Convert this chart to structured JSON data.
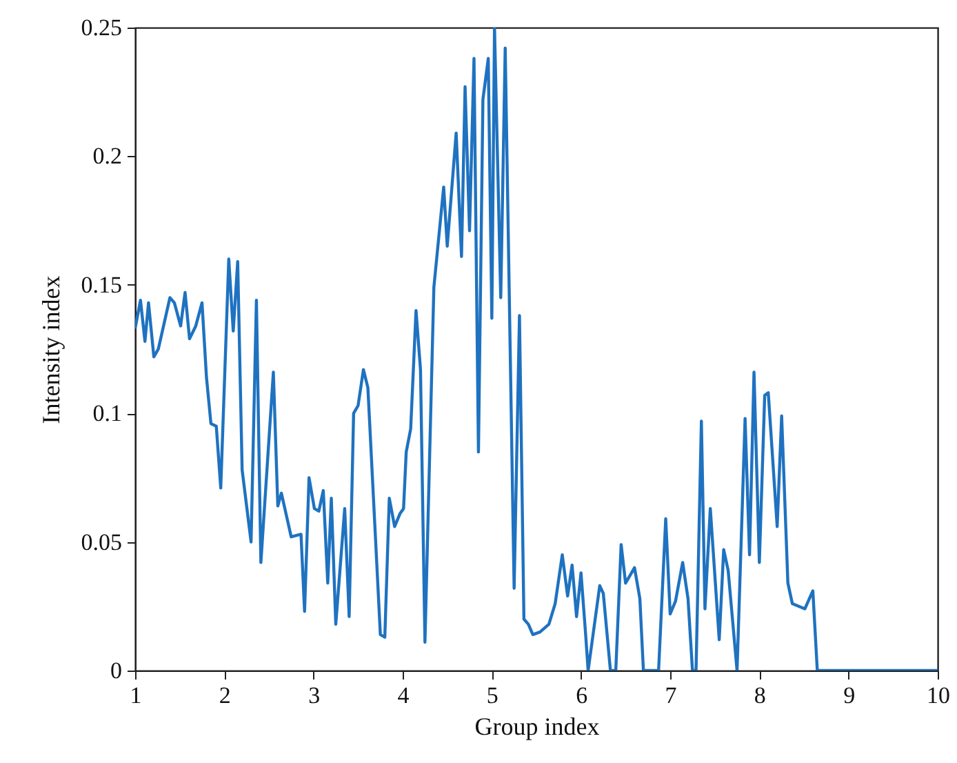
{
  "chart_data": {
    "type": "line",
    "xlabel": "Group index",
    "ylabel": "Intensity index",
    "xlim": [
      1,
      10
    ],
    "xticks": [
      1,
      2,
      3,
      4,
      5,
      6,
      7,
      8,
      9,
      10
    ],
    "ylim": [
      0,
      0.25
    ],
    "yticks": [
      0,
      0.05,
      0.1,
      0.15,
      0.2,
      0.25
    ],
    "grid": false,
    "marker": "none",
    "line_style": "solid",
    "series": [
      {
        "color": "#1f72c0",
        "x": [
          1.0,
          1.06,
          1.11,
          1.15,
          1.21,
          1.26,
          1.39,
          1.44,
          1.51,
          1.56,
          1.61,
          1.68,
          1.75,
          1.8,
          1.85,
          1.91,
          1.96,
          2.05,
          2.1,
          2.15,
          2.2,
          2.3,
          2.36,
          2.41,
          2.55,
          2.6,
          2.64,
          2.75,
          2.86,
          2.9,
          2.95,
          3.01,
          3.06,
          3.11,
          3.16,
          3.2,
          3.25,
          3.35,
          3.4,
          3.45,
          3.5,
          3.56,
          3.61,
          3.75,
          3.8,
          3.85,
          3.91,
          3.97,
          4.01,
          4.04,
          4.09,
          4.15,
          4.2,
          4.25,
          4.35,
          4.46,
          4.5,
          4.6,
          4.66,
          4.7,
          4.75,
          4.8,
          4.85,
          4.9,
          4.96,
          5.0,
          5.03,
          5.1,
          5.15,
          5.25,
          5.31,
          5.36,
          5.41,
          5.46,
          5.54,
          5.64,
          5.71,
          5.79,
          5.85,
          5.9,
          5.95,
          6.0,
          6.05,
          6.08,
          6.21,
          6.25,
          6.33,
          6.39,
          6.45,
          6.5,
          6.6,
          6.66,
          6.7,
          6.87,
          6.95,
          7.0,
          7.06,
          7.14,
          7.2,
          7.25,
          7.29,
          7.35,
          7.39,
          7.45,
          7.55,
          7.6,
          7.65,
          7.75,
          7.84,
          7.89,
          7.94,
          8.0,
          8.06,
          8.1,
          8.2,
          8.25,
          8.32,
          8.37,
          8.51,
          8.6,
          8.65,
          10.0
        ],
        "values": [
          0.133,
          0.144,
          0.128,
          0.143,
          0.122,
          0.125,
          0.145,
          0.143,
          0.134,
          0.147,
          0.129,
          0.134,
          0.143,
          0.114,
          0.096,
          0.095,
          0.071,
          0.16,
          0.132,
          0.159,
          0.078,
          0.05,
          0.144,
          0.042,
          0.116,
          0.064,
          0.069,
          0.052,
          0.053,
          0.023,
          0.075,
          0.063,
          0.062,
          0.07,
          0.034,
          0.067,
          0.018,
          0.063,
          0.021,
          0.1,
          0.103,
          0.117,
          0.11,
          0.014,
          0.013,
          0.067,
          0.056,
          0.061,
          0.063,
          0.085,
          0.094,
          0.14,
          0.117,
          0.011,
          0.149,
          0.188,
          0.165,
          0.209,
          0.161,
          0.227,
          0.171,
          0.238,
          0.085,
          0.222,
          0.238,
          0.137,
          0.25,
          0.145,
          0.242,
          0.032,
          0.138,
          0.02,
          0.018,
          0.014,
          0.015,
          0.018,
          0.026,
          0.045,
          0.029,
          0.041,
          0.021,
          0.038,
          0.015,
          0,
          0.033,
          0.03,
          0,
          0,
          0.049,
          0.034,
          0.04,
          0.028,
          0,
          0,
          0.059,
          0.022,
          0.027,
          0.042,
          0.028,
          0,
          0,
          0.097,
          0.024,
          0.063,
          0.012,
          0.047,
          0.039,
          0,
          0.098,
          0.045,
          0.116,
          0.042,
          0.107,
          0.108,
          0.056,
          0.099,
          0.034,
          0.026,
          0.024,
          0.031,
          0,
          0
        ]
      }
    ]
  }
}
